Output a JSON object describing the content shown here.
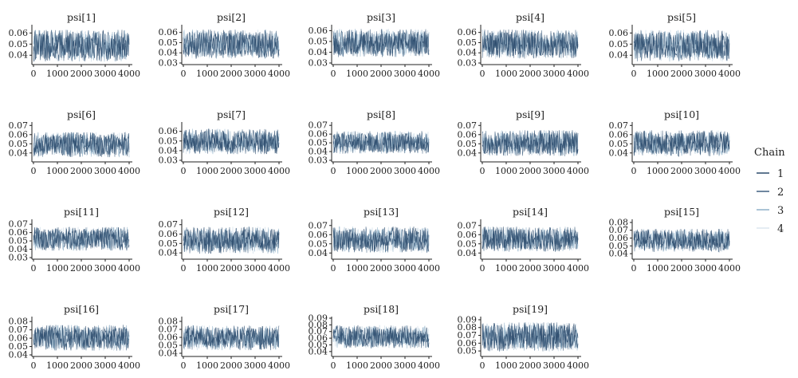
{
  "chart_data": {
    "type": "line",
    "legend": {
      "title": "Chain",
      "placement": "right",
      "entries": [
        {
          "label": "1",
          "color": "#2b4a6b"
        },
        {
          "label": "2",
          "color": "#3f5f80"
        },
        {
          "label": "3",
          "color": "#8fb0c8"
        },
        {
          "label": "4",
          "color": "#dce7ef"
        }
      ]
    },
    "x_ticks": [
      "0",
      "1000",
      "2000",
      "3000",
      "4000"
    ],
    "xlim": [
      0,
      4000
    ],
    "grid": false,
    "panels": [
      {
        "title": "psi[1]",
        "ylim": [
          0.033,
          0.066
        ],
        "yticks": [
          "0.04",
          "0.05",
          "0.06"
        ],
        "typical_range": [
          0.037,
          0.06
        ]
      },
      {
        "title": "psi[2]",
        "ylim": [
          0.03,
          0.066
        ],
        "yticks": [
          "0.03",
          "0.04",
          "0.05",
          "0.06"
        ],
        "typical_range": [
          0.037,
          0.06
        ]
      },
      {
        "title": "psi[3]",
        "ylim": [
          0.03,
          0.064
        ],
        "yticks": [
          "0.03",
          "0.04",
          "0.05",
          "0.06"
        ],
        "typical_range": [
          0.038,
          0.059
        ]
      },
      {
        "title": "psi[4]",
        "ylim": [
          0.03,
          0.066
        ],
        "yticks": [
          "0.03",
          "0.04",
          "0.05",
          "0.06"
        ],
        "typical_range": [
          0.037,
          0.06
        ]
      },
      {
        "title": "psi[5]",
        "ylim": [
          0.033,
          0.066
        ],
        "yticks": [
          "0.04",
          "0.05",
          "0.06"
        ],
        "typical_range": [
          0.037,
          0.06
        ]
      },
      {
        "title": "psi[6]",
        "ylim": [
          0.032,
          0.072
        ],
        "yticks": [
          "0.04",
          "0.05",
          "0.06",
          "0.07"
        ],
        "typical_range": [
          0.038,
          0.06
        ]
      },
      {
        "title": "psi[7]",
        "ylim": [
          0.03,
          0.068
        ],
        "yticks": [
          "0.03",
          "0.04",
          "0.05",
          "0.06"
        ],
        "typical_range": [
          0.039,
          0.06
        ]
      },
      {
        "title": "psi[8]",
        "ylim": [
          0.03,
          0.072
        ],
        "yticks": [
          "0.03",
          "0.04",
          "0.05",
          "0.06",
          "0.07"
        ],
        "typical_range": [
          0.04,
          0.061
        ]
      },
      {
        "title": "psi[9]",
        "ylim": [
          0.032,
          0.072
        ],
        "yticks": [
          "0.04",
          "0.05",
          "0.06",
          "0.07"
        ],
        "typical_range": [
          0.039,
          0.062
        ]
      },
      {
        "title": "psi[10]",
        "ylim": [
          0.032,
          0.072
        ],
        "yticks": [
          "0.04",
          "0.05",
          "0.06",
          "0.07"
        ],
        "typical_range": [
          0.039,
          0.062
        ]
      },
      {
        "title": "psi[11]",
        "ylim": [
          0.03,
          0.074
        ],
        "yticks": [
          "0.03",
          "0.04",
          "0.05",
          "0.06",
          "0.07"
        ],
        "typical_range": [
          0.041,
          0.064
        ]
      },
      {
        "title": "psi[12]",
        "ylim": [
          0.035,
          0.074
        ],
        "yticks": [
          "0.04",
          "0.05",
          "0.06",
          "0.07"
        ],
        "typical_range": [
          0.042,
          0.065
        ]
      },
      {
        "title": "psi[13]",
        "ylim": [
          0.035,
          0.075
        ],
        "yticks": [
          "0.04",
          "0.05",
          "0.06",
          "0.07"
        ],
        "typical_range": [
          0.043,
          0.066
        ]
      },
      {
        "title": "psi[14]",
        "ylim": [
          0.035,
          0.075
        ],
        "yticks": [
          "0.04",
          "0.05",
          "0.06",
          "0.07"
        ],
        "typical_range": [
          0.044,
          0.066
        ]
      },
      {
        "title": "psi[15]",
        "ylim": [
          0.035,
          0.082
        ],
        "yticks": [
          "0.04",
          "0.05",
          "0.06",
          "0.07",
          "0.08"
        ],
        "typical_range": [
          0.045,
          0.069
        ]
      },
      {
        "title": "psi[16]",
        "ylim": [
          0.04,
          0.084
        ],
        "yticks": [
          "0.04",
          "0.05",
          "0.06",
          "0.07",
          "0.08"
        ],
        "typical_range": [
          0.048,
          0.073
        ]
      },
      {
        "title": "psi[17]",
        "ylim": [
          0.038,
          0.084
        ],
        "yticks": [
          "0.04",
          "0.05",
          "0.06",
          "0.07",
          "0.08"
        ],
        "typical_range": [
          0.047,
          0.072
        ]
      },
      {
        "title": "psi[18]",
        "ylim": [
          0.035,
          0.09
        ],
        "yticks": [
          "0.04",
          "0.05",
          "0.06",
          "0.07",
          "0.08",
          "0.09"
        ],
        "typical_range": [
          0.048,
          0.076
        ]
      },
      {
        "title": "psi[19]",
        "ylim": [
          0.045,
          0.092
        ],
        "yticks": [
          "0.05",
          "0.06",
          "0.07",
          "0.08",
          "0.09"
        ],
        "typical_range": [
          0.053,
          0.083
        ]
      }
    ]
  }
}
